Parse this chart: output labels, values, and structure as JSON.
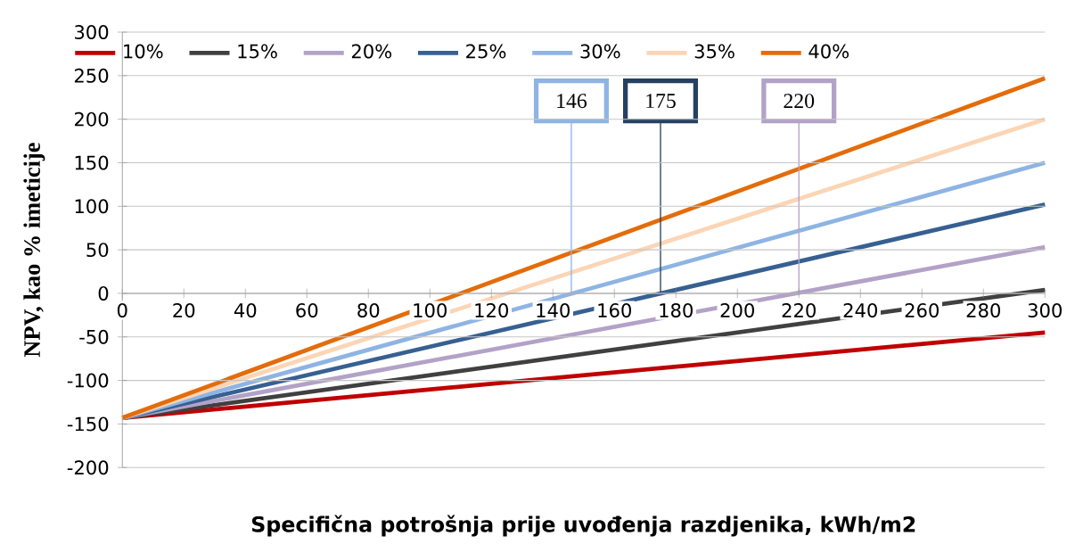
{
  "chart_data": {
    "type": "line",
    "xlabel": "Specifična  potrošnja prije uvođenja  razdjenika, kWh/m2",
    "ylabel": "NPV, kao % imeticije",
    "xlim": [
      0,
      300
    ],
    "ylim": [
      -200,
      300
    ],
    "xticks": [
      0,
      20,
      40,
      60,
      80,
      100,
      120,
      140,
      160,
      180,
      200,
      220,
      240,
      260,
      280,
      300
    ],
    "yticks": [
      -200,
      -150,
      -100,
      -50,
      0,
      50,
      100,
      150,
      200,
      250,
      300
    ],
    "x": [
      0,
      300
    ],
    "grid": "y",
    "legend": "top",
    "marker": "none",
    "line_style": "solid",
    "series": [
      {
        "name": "10%",
        "color": "#c00000",
        "values": [
          -143,
          -45
        ]
      },
      {
        "name": "15%",
        "color": "#404040",
        "values": [
          -143,
          4
        ]
      },
      {
        "name": "20%",
        "color": "#b3a2c7",
        "values": [
          -143,
          53
        ]
      },
      {
        "name": "25%",
        "color": "#376092",
        "values": [
          -143,
          102
        ]
      },
      {
        "name": "30%",
        "color": "#8eb4e3",
        "values": [
          -143,
          150
        ]
      },
      {
        "name": "35%",
        "color": "#fcd5b5",
        "values": [
          -143,
          200
        ]
      },
      {
        "name": "40%",
        "color": "#e46c0a",
        "values": [
          -143,
          247
        ]
      }
    ],
    "ref_lines": [
      {
        "axis": "x",
        "value": 146,
        "label": "146",
        "color": "#8eb4e3"
      },
      {
        "axis": "x",
        "value": 175,
        "label": "175",
        "color": "#254061"
      },
      {
        "axis": "x",
        "value": 220,
        "label": "220",
        "color": "#b3a2c7"
      }
    ]
  }
}
